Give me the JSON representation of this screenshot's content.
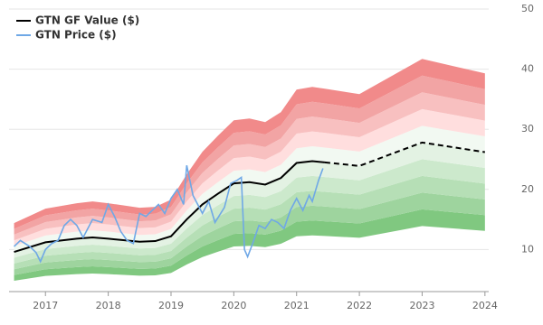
{
  "chart_data": {
    "type": "gf-value",
    "xlim": [
      2016.42,
      2024.06
    ],
    "xticks": [
      2017,
      2018,
      2019,
      2020,
      2021,
      2022,
      2023,
      2024
    ],
    "ylim": [
      3,
      50
    ],
    "yticks": [
      10,
      20,
      30,
      40,
      50
    ],
    "grid": true,
    "legend": "top-left",
    "band_edges": [
      0.5,
      0.6,
      0.7,
      0.8,
      0.9,
      1.0,
      1.1,
      1.2,
      1.3,
      1.4,
      1.5
    ],
    "band_colors": [
      "#80c880",
      "#9ed49e",
      "#b6dfb6",
      "#cce9cc",
      "#e3f2e3",
      "#f2f9f2",
      "#ffdede",
      "#f8c0c0",
      "#f2a4a4",
      "#f18a8a"
    ],
    "series": [
      {
        "name": "GTN GF Value ($)",
        "color": "#000000",
        "estimate_from_index": 17,
        "x": [
          2016.5,
          2017.0,
          2017.5,
          2017.75,
          2018.0,
          2018.5,
          2018.75,
          2019.0,
          2019.25,
          2019.5,
          2019.75,
          2020.0,
          2020.25,
          2020.5,
          2020.75,
          2021.0,
          2021.25,
          2021.45,
          2022.0,
          2023.0,
          2024.0
        ],
        "values": [
          9.6,
          11.2,
          11.8,
          12.0,
          11.8,
          11.3,
          11.4,
          12.2,
          15.0,
          17.5,
          19.3,
          21.0,
          21.2,
          20.8,
          21.9,
          24.4,
          24.7,
          24.5,
          23.9,
          27.8,
          26.2
        ]
      },
      {
        "name": "GTN Price ($)",
        "color": "#6fa8e6",
        "x": [
          2016.5,
          2016.6,
          2016.75,
          2016.85,
          2016.92,
          2017.0,
          2017.1,
          2017.2,
          2017.3,
          2017.4,
          2017.5,
          2017.6,
          2017.75,
          2017.9,
          2018.0,
          2018.1,
          2018.2,
          2018.3,
          2018.4,
          2018.5,
          2018.6,
          2018.7,
          2018.8,
          2018.9,
          2019.0,
          2019.1,
          2019.2,
          2019.25,
          2019.35,
          2019.5,
          2019.6,
          2019.7,
          2019.85,
          2019.95,
          2020.05,
          2020.12,
          2020.17,
          2020.22,
          2020.3,
          2020.4,
          2020.5,
          2020.6,
          2020.7,
          2020.8,
          2020.9,
          2021.0,
          2021.1,
          2021.2,
          2021.25,
          2021.35,
          2021.42
        ],
        "values": [
          10.5,
          11.5,
          10.5,
          9.5,
          8,
          10,
          11,
          11.5,
          14,
          15,
          14,
          12,
          15,
          14.5,
          17.5,
          15.5,
          13,
          11.5,
          11,
          16,
          15.5,
          16.5,
          17.5,
          16,
          18.5,
          20,
          17.5,
          24,
          19,
          16,
          18,
          14.5,
          17,
          21,
          21.5,
          22,
          10,
          8.8,
          11,
          14,
          13.5,
          15,
          14.5,
          13.5,
          16.5,
          18.5,
          16.5,
          19,
          18,
          21.5,
          23.5
        ]
      }
    ]
  }
}
